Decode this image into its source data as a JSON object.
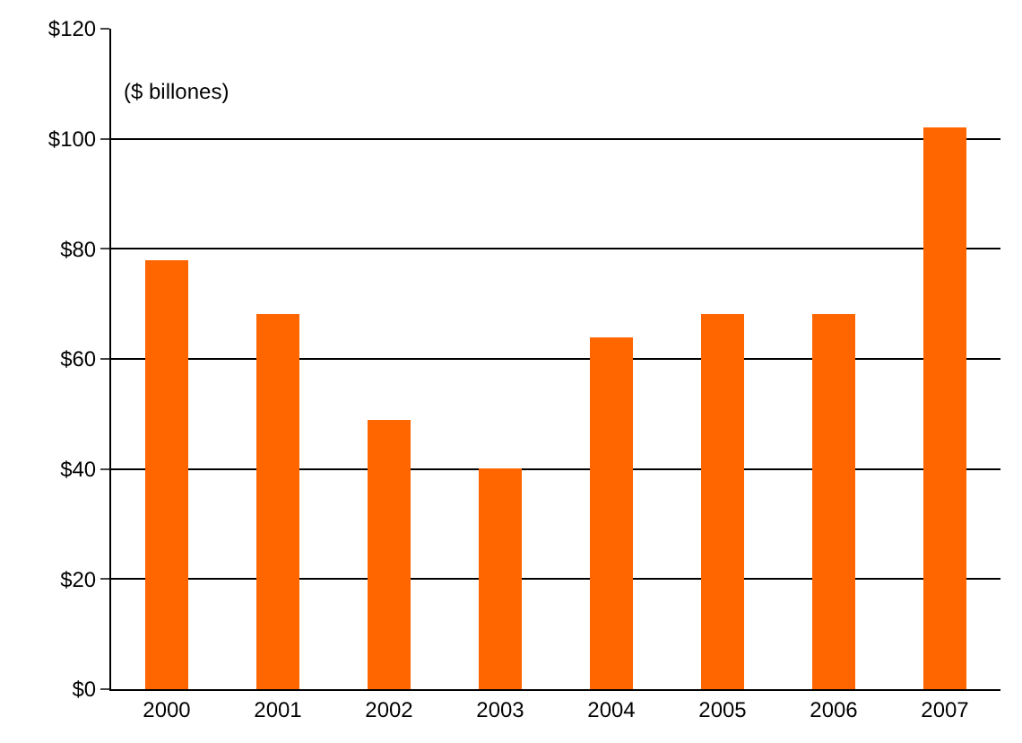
{
  "chart_data": {
    "type": "bar",
    "categories": [
      "2000",
      "2001",
      "2002",
      "2003",
      "2004",
      "2005",
      "2006",
      "2007"
    ],
    "values": [
      78,
      68,
      49,
      40,
      64,
      68,
      68,
      102
    ],
    "color": "#ff6600",
    "ylim": [
      0,
      120
    ],
    "yticks": [
      {
        "value": 0,
        "label": "$0"
      },
      {
        "value": 20,
        "label": "$20"
      },
      {
        "value": 40,
        "label": "$40"
      },
      {
        "value": 60,
        "label": "$60"
      },
      {
        "value": 80,
        "label": "$80"
      },
      {
        "value": 100,
        "label": "$100"
      },
      {
        "value": 120,
        "label": "$120"
      }
    ],
    "grid": "y",
    "annotations": [
      "($ billones)"
    ]
  }
}
